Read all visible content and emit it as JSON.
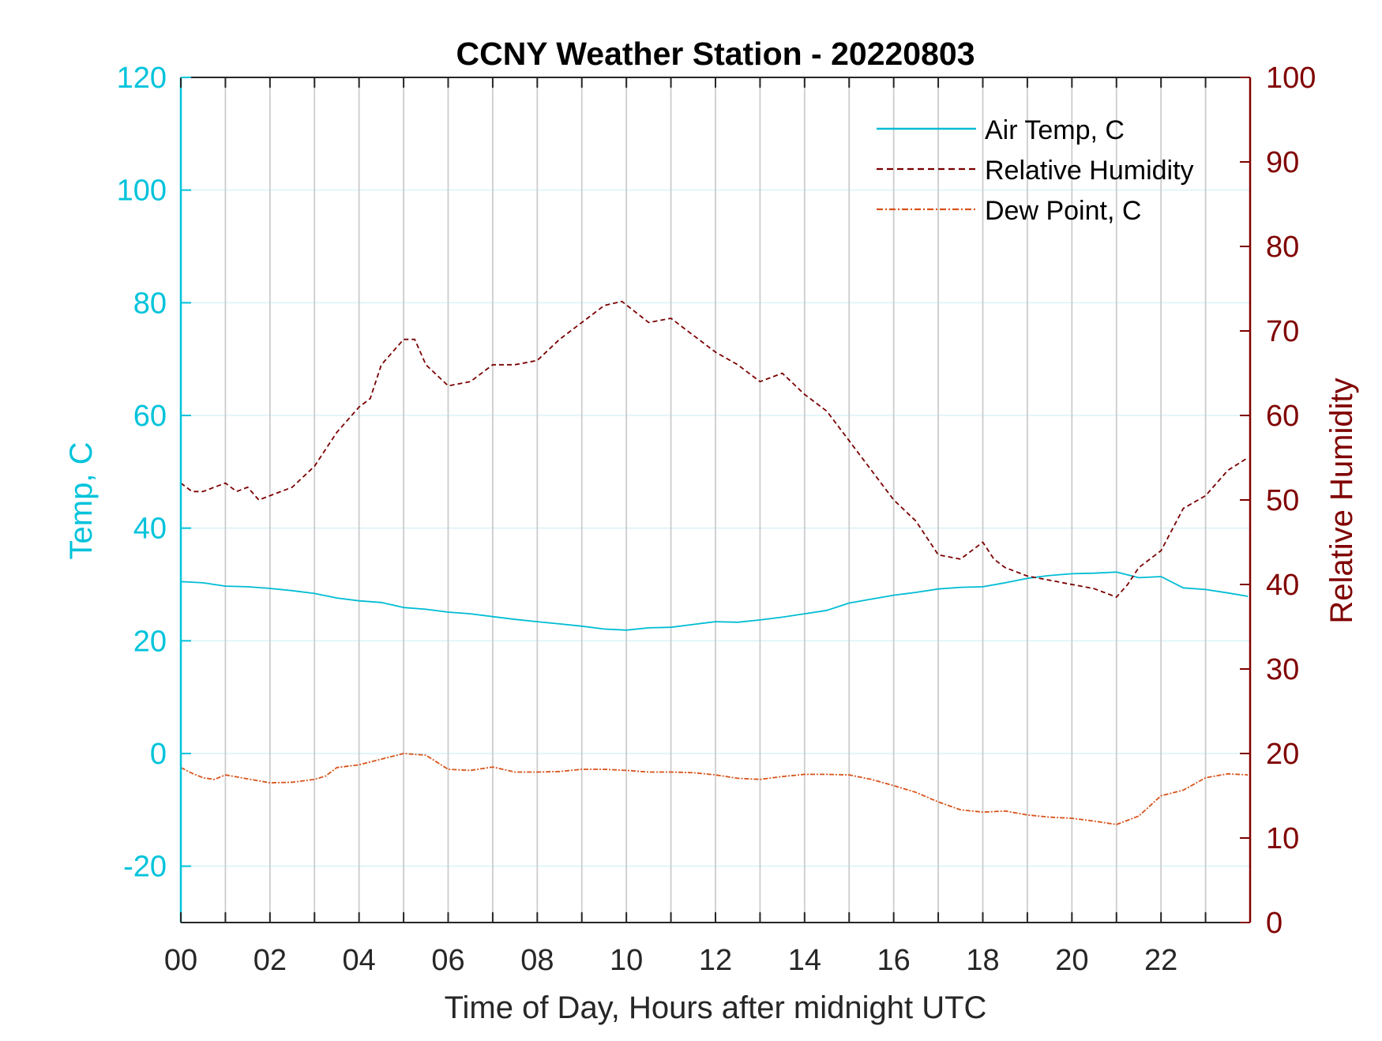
{
  "chart_data": {
    "type": "line",
    "title": "CCNY Weather Station - 20220803",
    "xlabel": "Time of Day, Hours after midnight UTC",
    "ylabel_left": "Temp, C",
    "ylabel_right": "Relative Humidity",
    "xlim": [
      0,
      24
    ],
    "ylim_left": [
      -30,
      120
    ],
    "ylim_right": [
      0,
      100
    ],
    "x_ticks": [
      0,
      2,
      4,
      6,
      8,
      10,
      12,
      14,
      16,
      18,
      20,
      22
    ],
    "x_tick_labels": [
      "00",
      "02",
      "04",
      "06",
      "08",
      "10",
      "12",
      "14",
      "16",
      "18",
      "20",
      "22"
    ],
    "y_left_ticks": [
      -20,
      0,
      20,
      40,
      60,
      80,
      100,
      120
    ],
    "y_left_tick_labels": [
      "-20",
      "0",
      "20",
      "40",
      "60",
      "80",
      "100",
      "120"
    ],
    "y_right_ticks": [
      0,
      10,
      20,
      30,
      40,
      50,
      60,
      70,
      80,
      90,
      100
    ],
    "y_right_tick_labels": [
      "0",
      "10",
      "20",
      "30",
      "40",
      "50",
      "60",
      "70",
      "80",
      "90",
      "100"
    ],
    "grid": true,
    "legend_position": "top-right",
    "colors": {
      "left_axis": "#00C3DB",
      "right_axis": "#800000",
      "air_temp": "#00BCD4",
      "humidity": "#7A0000",
      "dew_point": "#D95319",
      "vgrid": "#CCCCCC",
      "hgrid": "#D8F3F8"
    },
    "series": [
      {
        "name": "Air Temp, C",
        "axis": "left",
        "style": "solid",
        "x": [
          0,
          0.5,
          1,
          1.5,
          2,
          2.5,
          3,
          3.5,
          4,
          4.5,
          5,
          5.5,
          6,
          6.5,
          7,
          7.5,
          8,
          8.5,
          9,
          9.5,
          10,
          10.5,
          11,
          11.5,
          12,
          12.5,
          13,
          13.5,
          14,
          14.5,
          15,
          15.5,
          16,
          16.5,
          17,
          17.5,
          18,
          18.5,
          19,
          19.5,
          20,
          20.5,
          21,
          21.5,
          22,
          22.5,
          23,
          23.5,
          23.95
        ],
        "y": [
          30.5,
          30.3,
          29.7,
          29.6,
          29.3,
          28.9,
          28.4,
          27.6,
          27.1,
          26.8,
          25.9,
          25.6,
          25.1,
          24.8,
          24.3,
          23.8,
          23.4,
          23.0,
          22.6,
          22.1,
          21.9,
          22.3,
          22.4,
          22.9,
          23.4,
          23.3,
          23.7,
          24.2,
          24.8,
          25.4,
          26.7,
          27.4,
          28.1,
          28.6,
          29.2,
          29.5,
          29.6,
          30.3,
          31.1,
          31.6,
          31.9,
          32.0,
          32.2,
          31.2,
          31.4,
          29.4,
          29.1,
          28.5,
          27.9
        ]
      },
      {
        "name": "Relative Humidity",
        "axis": "right",
        "style": "dashed",
        "x": [
          0,
          0.25,
          0.5,
          0.75,
          1,
          1.25,
          1.5,
          1.75,
          2,
          2.5,
          3,
          3.5,
          4,
          4.25,
          4.5,
          5,
          5.25,
          5.5,
          6,
          6.5,
          7,
          7.5,
          8,
          8.5,
          9,
          9.5,
          9.9,
          10.5,
          11,
          11.5,
          12,
          12.5,
          13,
          13.5,
          14,
          14.5,
          15,
          15.5,
          16,
          16.5,
          17,
          17.5,
          18,
          18.25,
          18.5,
          19,
          19.5,
          20,
          20.5,
          21,
          21.25,
          21.5,
          22,
          22.5,
          23,
          23.5,
          23.95
        ],
        "y": [
          52,
          51,
          51,
          51.5,
          52,
          51,
          51.5,
          50,
          50.5,
          51.5,
          54,
          58,
          61,
          62,
          66,
          69,
          69,
          66,
          63.5,
          64,
          66,
          66,
          66.5,
          69,
          71,
          73,
          73.5,
          71,
          71.5,
          69.5,
          67.5,
          66,
          64,
          65,
          62.5,
          60.5,
          57,
          53.5,
          50,
          47.5,
          43.5,
          43,
          45,
          43,
          42,
          41,
          40.5,
          40,
          39.5,
          38.5,
          40,
          42,
          44,
          49,
          50.5,
          53.5,
          55
        ]
      },
      {
        "name": "Dew Point, C",
        "axis": "left",
        "style": "dashdot",
        "x": [
          0,
          0.25,
          0.5,
          0.75,
          1,
          1.5,
          2,
          2.5,
          3,
          3.25,
          3.5,
          4,
          4.5,
          5,
          5.5,
          6,
          6.5,
          7,
          7.5,
          8,
          8.5,
          9,
          9.5,
          10,
          10.5,
          11,
          11.5,
          12,
          12.5,
          13,
          13.5,
          14,
          14.5,
          15,
          15.5,
          16,
          16.5,
          17,
          17.5,
          18,
          18.5,
          19,
          19.5,
          20,
          20.5,
          21,
          21.5,
          22,
          22.5,
          23,
          23.5,
          23.95
        ],
        "y": [
          -2.5,
          -3.5,
          -4.3,
          -4.6,
          -3.8,
          -4.5,
          -5.2,
          -5.1,
          -4.6,
          -4.0,
          -2.5,
          -2.0,
          -1.0,
          0.0,
          -0.3,
          -2.8,
          -3.0,
          -2.4,
          -3.3,
          -3.3,
          -3.2,
          -2.8,
          -2.8,
          -3.0,
          -3.3,
          -3.3,
          -3.4,
          -3.8,
          -4.4,
          -4.6,
          -4.1,
          -3.7,
          -3.7,
          -3.8,
          -4.6,
          -5.7,
          -6.9,
          -8.6,
          -10.0,
          -10.4,
          -10.2,
          -10.9,
          -11.3,
          -11.5,
          -12.0,
          -12.6,
          -11.1,
          -7.5,
          -6.5,
          -4.3,
          -3.6,
          -3.8
        ]
      }
    ]
  }
}
